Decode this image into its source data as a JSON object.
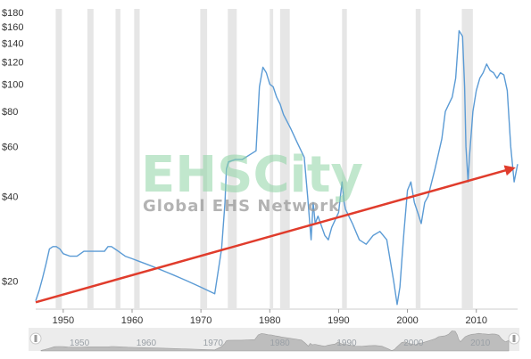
{
  "chart_data": {
    "type": "line",
    "title": "",
    "xlabel": "",
    "ylabel": "",
    "y_scale": "log",
    "xlim": [
      1946,
      2016
    ],
    "ylim": [
      16,
      180
    ],
    "y_ticks": [
      {
        "value": 180,
        "label": "$180"
      },
      {
        "value": 160,
        "label": "$160"
      },
      {
        "value": 140,
        "label": "$140"
      },
      {
        "value": 120,
        "label": "$120"
      },
      {
        "value": 100,
        "label": "$100"
      },
      {
        "value": 80,
        "label": "$80"
      },
      {
        "value": 60,
        "label": "$60"
      },
      {
        "value": 40,
        "label": "$40"
      },
      {
        "value": 20,
        "label": "$20"
      }
    ],
    "x_ticks": [
      1950,
      1960,
      1970,
      1980,
      1990,
      2000,
      2010
    ],
    "grid": false,
    "recession_bands": [
      [
        1948.9,
        1949.8
      ],
      [
        1953.5,
        1954.4
      ],
      [
        1957.6,
        1958.3
      ],
      [
        1960.3,
        1961.1
      ],
      [
        1969.9,
        1970.9
      ],
      [
        1973.9,
        1975.2
      ],
      [
        1980.0,
        1980.5
      ],
      [
        1981.5,
        1982.9
      ],
      [
        1990.5,
        1991.2
      ],
      [
        2001.2,
        2001.9
      ],
      [
        2007.9,
        2009.5
      ]
    ],
    "series": [
      {
        "color": "#5b9bd5",
        "x": [
          1946,
          1946.5,
          1947,
          1947.5,
          1948,
          1948.5,
          1949,
          1949.5,
          1950,
          1951,
          1952,
          1953,
          1954,
          1955,
          1956,
          1956.5,
          1957,
          1958,
          1959,
          1960,
          1961,
          1962,
          1963,
          1964,
          1965,
          1966,
          1967,
          1968,
          1969,
          1970,
          1971,
          1972,
          1973,
          1973.5,
          1973.7,
          1974,
          1975,
          1976,
          1977,
          1978,
          1978.5,
          1979,
          1979.5,
          1980,
          1980.5,
          1981,
          1981.5,
          1982,
          1983,
          1984,
          1985,
          1985.5,
          1986,
          1986.3,
          1986.6,
          1987,
          1988,
          1988.5,
          1989,
          1990,
          1990.5,
          1990.8,
          1991,
          1992,
          1993,
          1994,
          1995,
          1996,
          1997,
          1998,
          1998.5,
          1998.9,
          1999.2,
          1999.5,
          2000,
          2000.5,
          2001,
          2001.5,
          2002,
          2002.5,
          2003,
          2004,
          2005,
          2005.5,
          2006,
          2006.5,
          2007,
          2007.5,
          2008,
          2008.3,
          2008.5,
          2008.8,
          2009,
          2009.5,
          2010,
          2010.5,
          2011,
          2011.5,
          2012,
          2012.5,
          2013,
          2013.5,
          2014,
          2014.5,
          2015,
          2015.5,
          2016
        ],
        "values": [
          17,
          18.5,
          20.5,
          23,
          26,
          26.5,
          26.5,
          26,
          25,
          24.5,
          24.5,
          25.5,
          25.5,
          25.5,
          25.5,
          26.5,
          26.5,
          25.5,
          24.5,
          24,
          23.5,
          23,
          22.5,
          22,
          21.5,
          21,
          20.5,
          20,
          19.5,
          19,
          18.5,
          18,
          26,
          38,
          50,
          53,
          54,
          54,
          56,
          58,
          98,
          115,
          110,
          100,
          98,
          90,
          85,
          78,
          70,
          62,
          55,
          40,
          28,
          38,
          32,
          34,
          29,
          28,
          31,
          35,
          45,
          38,
          36,
          32,
          28,
          27,
          29,
          30,
          28,
          20,
          16.5,
          19,
          24,
          30,
          42,
          45,
          38,
          35,
          32,
          38,
          40,
          50,
          64,
          80,
          85,
          90,
          105,
          155,
          148,
          98,
          60,
          45,
          55,
          80,
          95,
          105,
          110,
          118,
          112,
          110,
          105,
          110,
          108,
          95,
          60,
          45,
          52
        ]
      }
    ],
    "trend_line": {
      "color": "#e03c2c",
      "start": [
        1946.0,
        16.8
      ],
      "end": [
        2016.0,
        50.0
      ]
    },
    "navigator": {
      "labels": [
        "1950",
        "1960",
        "1970",
        "1980",
        "1990",
        "2000",
        "2010"
      ]
    }
  },
  "watermark": {
    "main": "EHSCity",
    "sub": "Global EHS Network"
  },
  "colors": {
    "line": "#5b9bd5",
    "trend": "#e03c2c",
    "recession": "#e6e6e6",
    "navigator_bg": "#ececec",
    "navigator_area": "#bdbdbd"
  }
}
